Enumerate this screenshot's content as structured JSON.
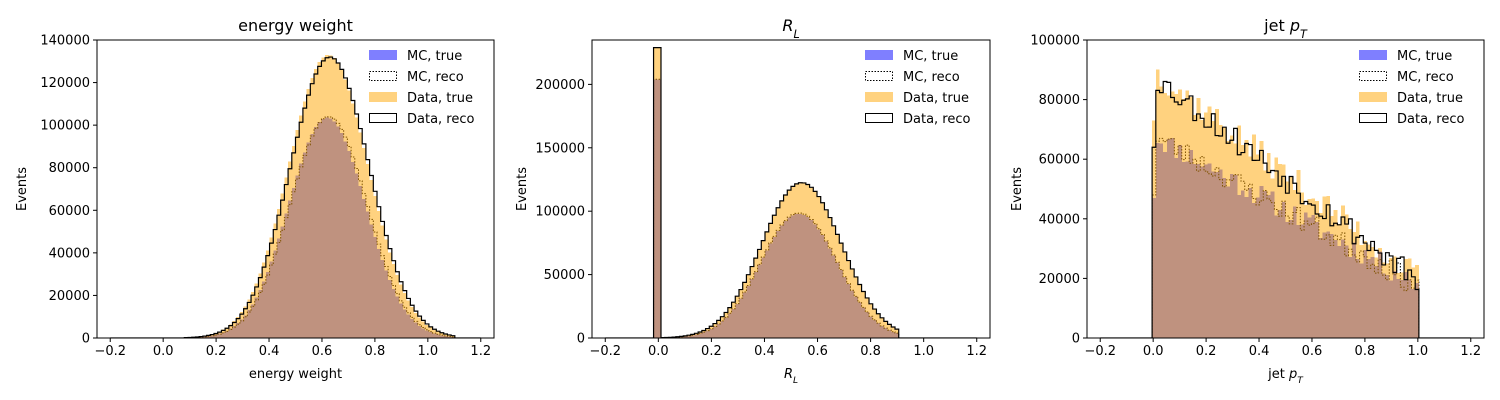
{
  "legend_entries": [
    "MC, true",
    "MC, reco",
    "Data, true",
    "Data, reco"
  ],
  "colors": {
    "mc_true": "#0000ff",
    "data_true": "#ffa500",
    "overlap_brown": "#bc8f7d",
    "axis": "#000000"
  },
  "chart_data": [
    {
      "type": "histogram",
      "title": "energy weight",
      "xlabel": "energy weight",
      "ylabel": "Events",
      "xlim": [
        -0.25,
        1.25
      ],
      "ylim": [
        0,
        140000
      ],
      "xticks": [
        -0.2,
        0.0,
        0.2,
        0.4,
        0.6,
        0.8,
        1.0,
        1.2
      ],
      "xtick_labels": [
        "−0.2",
        "0.0",
        "0.2",
        "0.4",
        "0.6",
        "0.8",
        "1.0",
        "1.2"
      ],
      "yticks": [
        0,
        20000,
        40000,
        60000,
        80000,
        100000,
        120000,
        140000
      ],
      "ytick_labels": [
        "0",
        "20000",
        "40000",
        "60000",
        "80000",
        "100000",
        "120000",
        "140000"
      ],
      "legend_position": "upper right",
      "bins": {
        "start": -0.2,
        "end": 1.2,
        "count": 100
      },
      "series": [
        {
          "name": "MC, true",
          "style": "filled",
          "alpha": 0.5,
          "shape": {
            "kind": "gauss",
            "center": 0.62,
            "sigma": 0.145,
            "peak": 103500,
            "range": [
              0.08,
              1.1
            ]
          }
        },
        {
          "name": "MC, reco",
          "style": "dotted-step",
          "shape": {
            "kind": "gauss",
            "center": 0.625,
            "sigma": 0.145,
            "peak": 104000,
            "range": [
              0.08,
              1.1
            ]
          }
        },
        {
          "name": "Data, true",
          "style": "filled",
          "alpha": 0.5,
          "shape": {
            "kind": "gauss",
            "center": 0.625,
            "sigma": 0.15,
            "peak": 133000,
            "range": [
              0.08,
              1.1
            ]
          }
        },
        {
          "name": "Data, reco",
          "style": "solid-step",
          "shape": {
            "kind": "gauss",
            "center": 0.63,
            "sigma": 0.15,
            "peak": 132000,
            "range": [
              0.08,
              1.1
            ]
          }
        }
      ]
    },
    {
      "type": "histogram",
      "title": "R_L",
      "xlabel": "R_L",
      "ylabel": "Events",
      "xlim": [
        -0.25,
        1.25
      ],
      "ylim": [
        0,
        235000
      ],
      "xticks": [
        -0.2,
        0.0,
        0.2,
        0.4,
        0.6,
        0.8,
        1.0,
        1.2
      ],
      "xtick_labels": [
        "−0.2",
        "0.0",
        "0.2",
        "0.4",
        "0.6",
        "0.8",
        "1.0",
        "1.2"
      ],
      "yticks": [
        0,
        50000,
        100000,
        150000,
        200000
      ],
      "ytick_labels": [
        "0",
        "50000",
        "100000",
        "150000",
        "200000"
      ],
      "legend_position": "upper right",
      "bins": {
        "start": -0.2,
        "end": 1.2,
        "count": 100
      },
      "series": [
        {
          "name": "MC, true",
          "style": "filled",
          "alpha": 0.5,
          "shape": {
            "kind": "gauss",
            "center": 0.53,
            "sigma": 0.145,
            "peak": 98000,
            "range": [
              0.014,
              0.9
            ],
            "spike": {
              "x": 0.0,
              "value": 204000
            }
          }
        },
        {
          "name": "MC, reco",
          "style": "dotted-step",
          "shape": {
            "kind": "gauss",
            "center": 0.53,
            "sigma": 0.145,
            "peak": 98500,
            "range": [
              0.014,
              0.9
            ],
            "spike": {
              "x": 0.0,
              "value": 204000
            }
          }
        },
        {
          "name": "Data, true",
          "style": "filled",
          "alpha": 0.5,
          "shape": {
            "kind": "gauss",
            "center": 0.54,
            "sigma": 0.15,
            "peak": 122000,
            "range": [
              0.014,
              0.9
            ],
            "spike": {
              "x": 0.0,
              "value": 229000
            }
          }
        },
        {
          "name": "Data, reco",
          "style": "solid-step",
          "shape": {
            "kind": "gauss",
            "center": 0.54,
            "sigma": 0.15,
            "peak": 122500,
            "range": [
              0.014,
              0.9
            ],
            "spike": {
              "x": 0.0,
              "value": 229000
            }
          }
        }
      ]
    },
    {
      "type": "histogram",
      "title": "jet p_T",
      "xlabel": "jet p_T",
      "ylabel": "Events",
      "xlim": [
        -0.25,
        1.25
      ],
      "ylim": [
        0,
        100000
      ],
      "xticks": [
        -0.2,
        0.0,
        0.2,
        0.4,
        0.6,
        0.8,
        1.0,
        1.2
      ],
      "xtick_labels": [
        "−0.2",
        "0.0",
        "0.2",
        "0.4",
        "0.6",
        "0.8",
        "1.0",
        "1.2"
      ],
      "yticks": [
        0,
        20000,
        40000,
        60000,
        80000,
        100000
      ],
      "ytick_labels": [
        "0",
        "20000",
        "40000",
        "60000",
        "80000",
        "100000"
      ],
      "legend_position": "upper right",
      "bins": {
        "start": -0.2,
        "end": 1.2,
        "count": 100
      },
      "series": [
        {
          "name": "MC, true",
          "style": "filled",
          "alpha": 0.5,
          "shape": {
            "kind": "falling",
            "start": 68000,
            "end": 18000,
            "first": 47000,
            "range": [
              0.0,
              1.0
            ],
            "noise": 4000,
            "seed": 11
          }
        },
        {
          "name": "MC, reco",
          "style": "dotted-step",
          "shape": {
            "kind": "falling",
            "start": 68000,
            "end": 17500,
            "first": 48000,
            "range": [
              0.0,
              1.0
            ],
            "noise": 4000,
            "seed": 23
          }
        },
        {
          "name": "Data, true",
          "style": "filled",
          "alpha": 0.5,
          "shape": {
            "kind": "falling",
            "start": 90000,
            "end": 20000,
            "first": 73000,
            "range": [
              0.0,
              1.0
            ],
            "noise": 5000,
            "seed": 37
          }
        },
        {
          "name": "Data, reco",
          "style": "solid-step",
          "shape": {
            "kind": "falling",
            "start": 88000,
            "end": 19000,
            "first": 64000,
            "range": [
              0.0,
              1.0
            ],
            "noise": 4500,
            "seed": 53
          }
        }
      ]
    }
  ]
}
